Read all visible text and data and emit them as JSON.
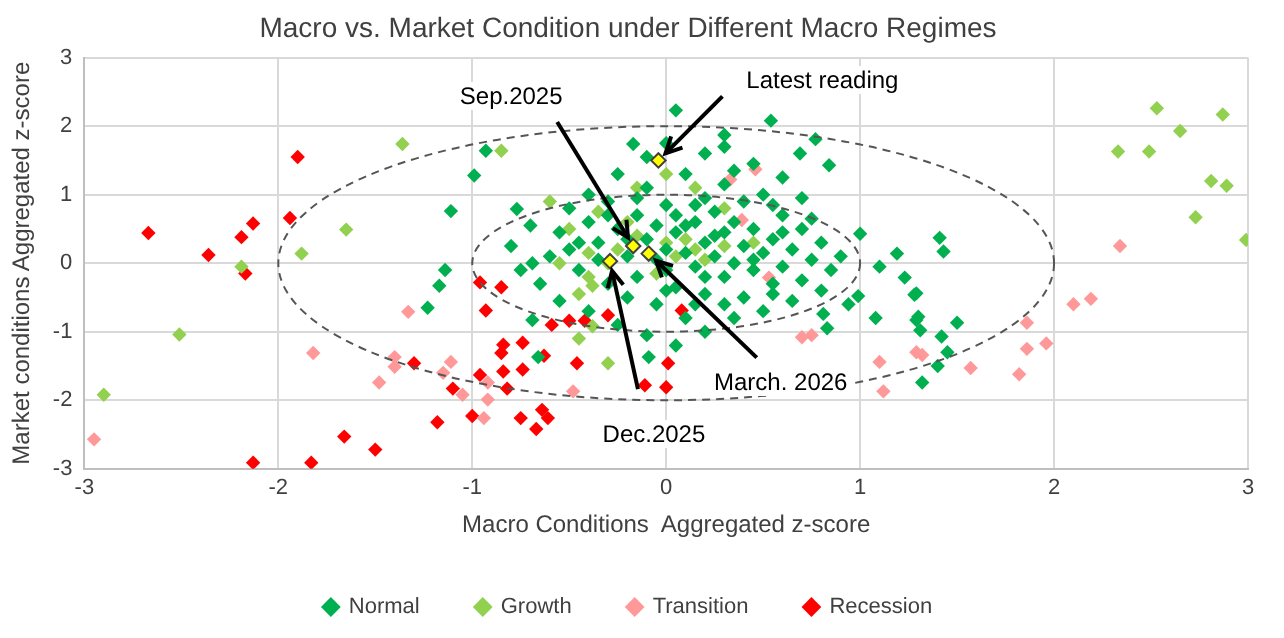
{
  "chart_data": {
    "type": "scatter",
    "title": "Macro vs. Market Condition under Different Macro Regimes",
    "xlabel": "Macro Conditions  Aggregated z-score",
    "ylabel": "Market conditions Aggregated z-score",
    "xlim": [
      -3,
      3
    ],
    "ylim": [
      -3,
      3
    ],
    "xticks": [
      -3,
      -2,
      -1,
      0,
      1,
      2,
      3
    ],
    "yticks": [
      -3,
      -2,
      -1,
      0,
      1,
      2,
      3
    ],
    "grid": true,
    "legend": "bottom",
    "marker": "diamond",
    "series": [
      {
        "name": "Normal",
        "color": "#00b050",
        "x": [
          -0.93,
          -0.99,
          -1.11,
          -0.77,
          0.05,
          -0.17,
          -1.14,
          -1.17,
          -1.23,
          -0.69,
          -0.66,
          -0.09,
          -0.69,
          0.54,
          0.3,
          0.77,
          0.84,
          0.69,
          1.0,
          1.41,
          1.43,
          1.19,
          1.23,
          1.29,
          1.28,
          1.3,
          1.29,
          1.31,
          1.42,
          1.5,
          1.45,
          1.4,
          1.32,
          1.08,
          0.81,
          0.83,
          0.94,
          0.99,
          1.1,
          -0.55,
          -0.5,
          -0.45,
          -0.4,
          -0.35,
          -0.3,
          -0.3,
          -0.25,
          -0.2,
          -0.2,
          -0.15,
          -0.15,
          -0.1,
          -0.1,
          -0.05,
          -0.05,
          0.0,
          0.0,
          0.0,
          0.05,
          0.05,
          0.1,
          0.1,
          0.1,
          0.15,
          0.15,
          0.2,
          0.2,
          0.2,
          0.25,
          0.25,
          0.3,
          0.3,
          0.3,
          0.35,
          0.35,
          0.4,
          0.4,
          0.4,
          0.45,
          0.45,
          0.5,
          0.5,
          0.5,
          0.55,
          0.55,
          0.6,
          0.6,
          0.65,
          0.65,
          0.7,
          0.7,
          0.75,
          0.8,
          0.8,
          0.85,
          0.9,
          0.6,
          0.45,
          0.2,
          -0.1,
          0.0,
          0.3,
          -0.25,
          -0.4,
          -0.5,
          -0.6,
          -0.65,
          -0.55,
          -0.4,
          -0.25,
          -0.1,
          0.05,
          0.2,
          0.35,
          -0.35,
          -0.2,
          -0.05,
          0.1,
          0.25,
          0.15,
          -0.3,
          0.35,
          0.55,
          0.7,
          0.75,
          0.45,
          0.2,
          0.05,
          -0.15,
          0.0,
          0.15,
          0.3,
          0.55,
          0.6,
          -0.45,
          -0.7,
          -0.8,
          -0.75
        ],
        "values": [
          1.64,
          1.28,
          0.76,
          0.79,
          2.23,
          1.74,
          -0.1,
          -0.33,
          -0.65,
          -0.83,
          -1.37,
          -1.37,
          0.0,
          2.08,
          1.87,
          1.81,
          1.43,
          1.6,
          0.43,
          0.37,
          0.17,
          0.14,
          -0.21,
          -0.44,
          -0.46,
          -0.78,
          -0.83,
          -0.98,
          -1.07,
          -0.87,
          -1.3,
          -1.5,
          -1.74,
          -0.8,
          -0.74,
          -0.95,
          -0.6,
          -0.48,
          -0.05,
          0.45,
          0.2,
          -0.1,
          0.6,
          0.3,
          -0.3,
          0.9,
          0.5,
          -0.5,
          0.1,
          0.7,
          -0.2,
          0.35,
          1.1,
          -0.6,
          0.55,
          0.2,
          -0.1,
          0.85,
          0.45,
          -0.35,
          0.15,
          1.3,
          -0.8,
          0.6,
          -0.05,
          0.3,
          0.95,
          -0.45,
          0.1,
          0.75,
          -0.2,
          0.45,
          1.15,
          0.0,
          0.6,
          -0.5,
          0.25,
          0.9,
          -0.1,
          0.5,
          0.15,
          -0.7,
          1.0,
          0.35,
          -0.3,
          0.7,
          -0.05,
          0.2,
          -0.55,
          0.5,
          -0.25,
          0.05,
          -0.4,
          0.3,
          -0.1,
          0.1,
          1.25,
          1.45,
          1.6,
          1.55,
          1.75,
          1.7,
          1.3,
          1.0,
          0.8,
          0.1,
          -0.3,
          -0.55,
          -0.7,
          -0.9,
          -1.05,
          -1.2,
          -1.0,
          -0.8,
          0.05,
          0.35,
          0.05,
          0.55,
          0.4,
          0.85,
          0.7,
          1.35,
          0.85,
          0.95,
          0.65,
          0.05,
          -0.2,
          0.7,
          0.95,
          -0.4,
          -0.6,
          -0.6,
          -0.45,
          0.45,
          0.3,
          0.55,
          0.25,
          -0.1
        ]
      },
      {
        "name": "Growth",
        "color": "#92d050",
        "x": [
          -1.36,
          -0.85,
          -1.65,
          -1.88,
          -2.19,
          -2.51,
          -2.9,
          -0.38,
          -0.45,
          -0.3,
          -0.38,
          2.53,
          2.87,
          2.65,
          2.33,
          2.49,
          2.81,
          2.89,
          2.73,
          2.99,
          -0.6,
          -0.5,
          -0.45,
          -0.4,
          -0.35,
          -0.3,
          -0.25,
          -0.2,
          -0.15,
          0.0,
          0.05,
          0.1,
          0.15,
          0.2,
          0.3,
          0.15,
          0.0,
          -0.15,
          0.3,
          -0.55,
          0.45,
          -0.05,
          -0.4
        ],
        "values": [
          1.74,
          1.64,
          0.49,
          0.14,
          -0.05,
          -1.04,
          -1.92,
          -0.92,
          -1.1,
          -1.46,
          -0.33,
          2.26,
          2.17,
          1.93,
          1.63,
          1.63,
          1.2,
          1.13,
          0.67,
          0.34,
          0.9,
          0.5,
          -0.45,
          0.15,
          0.75,
          0.0,
          0.2,
          0.6,
          0.4,
          0.3,
          0.1,
          0.35,
          0.2,
          0.05,
          0.25,
          1.1,
          1.3,
          1.1,
          0.8,
          0.0,
          0.3,
          -0.15,
          -0.2
        ]
      },
      {
        "name": "Transition",
        "color": "#ff9999",
        "x": [
          -1.33,
          -1.82,
          -1.4,
          -1.4,
          -1.48,
          -1.15,
          -1.11,
          -1.05,
          -0.92,
          -0.92,
          -0.94,
          -2.95,
          -0.48,
          0.53,
          0.7,
          0.75,
          1.1,
          1.12,
          1.29,
          1.32,
          1.57,
          1.82,
          1.86,
          1.86,
          1.96,
          2.1,
          2.19,
          0.46,
          0.33,
          0.39,
          2.34
        ],
        "values": [
          -0.71,
          -1.31,
          -1.37,
          -1.51,
          -1.74,
          -1.6,
          -1.44,
          -1.92,
          -1.74,
          -1.99,
          -2.26,
          -2.57,
          -1.87,
          -0.21,
          -1.08,
          -1.05,
          -1.44,
          -1.87,
          -1.3,
          -1.34,
          -1.53,
          -1.62,
          -1.25,
          -0.87,
          -1.17,
          -0.6,
          -0.52,
          1.37,
          1.22,
          0.63,
          0.25
        ]
      },
      {
        "name": "Recession",
        "color": "#ff0000",
        "x": [
          -2.67,
          -2.36,
          -2.19,
          -2.13,
          -1.9,
          -1.94,
          -2.17,
          -0.96,
          -0.85,
          -0.93,
          -0.5,
          -0.59,
          -0.3,
          -0.42,
          -0.74,
          -0.84,
          -0.85,
          -0.84,
          -0.96,
          -0.63,
          -0.74,
          -0.46,
          -1.3,
          -1.1,
          -0.82,
          -0.11,
          0.0,
          0.01,
          -0.64,
          -0.61,
          -0.67,
          -0.75,
          -1.0,
          -1.18,
          -1.66,
          -1.5,
          -2.13,
          -1.83,
          0.08
        ],
        "values": [
          0.44,
          0.12,
          0.38,
          0.58,
          1.55,
          0.66,
          -0.15,
          -0.28,
          -0.35,
          -0.69,
          -0.84,
          -0.9,
          -0.76,
          -0.84,
          -1.16,
          -1.19,
          -1.31,
          -1.58,
          -1.63,
          -1.35,
          -1.55,
          -1.46,
          -1.46,
          -1.83,
          -1.83,
          -1.78,
          -1.81,
          -1.46,
          -2.14,
          -2.26,
          -2.42,
          -2.26,
          -2.23,
          -2.32,
          -2.53,
          -2.72,
          -2.91,
          -2.91,
          -0.69
        ]
      },
      {
        "color": "#ffff00",
        "x": [
          -0.17,
          -0.09,
          -0.29,
          -0.04
        ],
        "values": [
          0.25,
          0.14,
          0.03,
          1.5
        ]
      }
    ],
    "annotations": [
      {
        "text": "Sep.2025",
        "x": -0.17,
        "y": 0.25
      },
      {
        "text": "March. 2026",
        "x": -0.09,
        "y": 0.14
      },
      {
        "text": "Dec.2025",
        "x": -0.29,
        "y": 0.03
      },
      {
        "text": "Latest reading",
        "x": -0.04,
        "y": 1.5
      }
    ]
  }
}
